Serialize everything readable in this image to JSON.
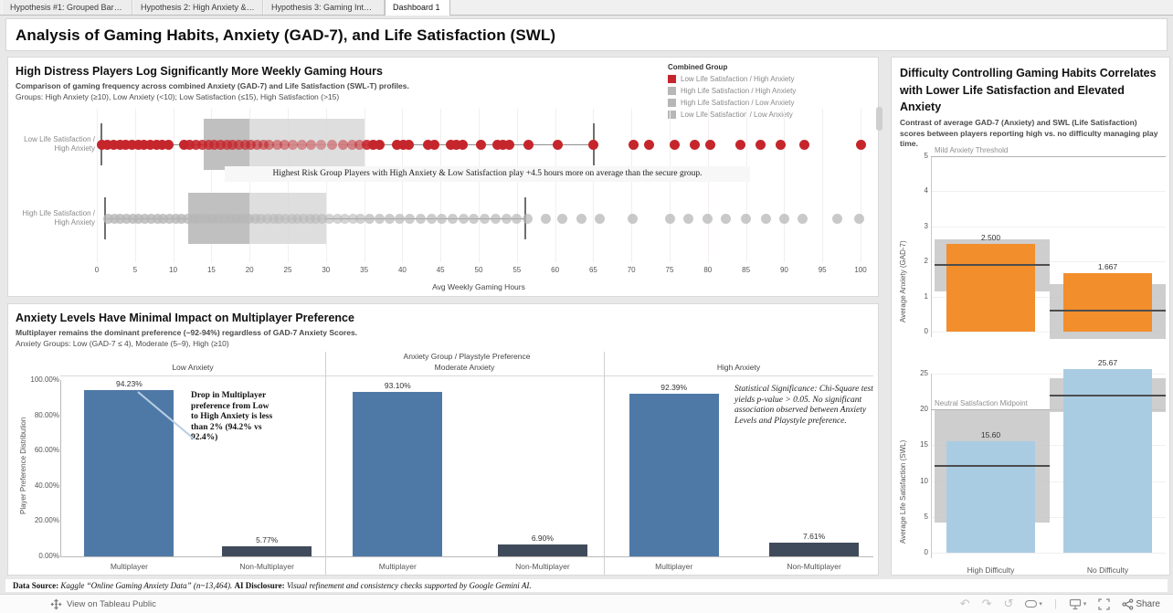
{
  "window": {
    "tabs": [
      {
        "label": "Hypothesis #1: Grouped Bar C...",
        "active": false
      },
      {
        "label": "Hypothesis 2: High Anxiety & L...",
        "active": false
      },
      {
        "label": "Hypothesis 3: Gaming Interfer...",
        "active": false
      },
      {
        "label": "Dashboard 1",
        "active": true
      }
    ]
  },
  "title": "Analysis of Gaming Habits, Anxiety (GAD-7), and Life Satisfaction (SWL)",
  "colors": {
    "red": "#c5262c",
    "gray_dot": "#b7b7b7",
    "box_light": "#d8d8d8",
    "box_dark": "#bcbcbc",
    "blue": "#4e79a7",
    "slate": "#3f4b5a",
    "orange": "#f28e2b",
    "light_blue": "#a9cce3",
    "ci_gray": "#c6c6c6",
    "leader_blue": "#b9cfe4"
  },
  "hours_chart": {
    "title": "High Distress Players Log Significantly More Weekly Gaming Hours",
    "subtitle1": "Comparison of gaming frequency across combined Anxiety (GAD-7) and Life Satisfaction (SWL-T) profiles.",
    "subtitle2": "Groups: High Anxiety (≥10), Low Anxiety (<10); Low Satisfaction (≤15), High Satisfaction (>15)",
    "legend": {
      "title": "Combined Group",
      "items": [
        {
          "label": "Low Life Satisfaction / High Anxiety",
          "color": "#c5262c"
        },
        {
          "label": "High Life Satisfaction / High Anxiety",
          "color": "#b7b7b7"
        },
        {
          "label": "High Life Satisfaction / Low Anxiety",
          "color": "#b7b7b7"
        },
        {
          "label": "Low Life Satisfaction / Low Anxiety",
          "color": "#b7b7b7"
        }
      ]
    },
    "annotation": "Highest Risk Group Players with High Anxiety & Low Satisfaction play +4.5 hours more on average than the secure group.",
    "xlabel": "Avg Weekly Gaming Hours"
  },
  "preference_chart": {
    "title": "Anxiety Levels Have Minimal Impact on Multiplayer Preference",
    "subtitle1": "Multiplayer remains the dominant preference (~92-94%) regardless of GAD-7 Anxiety Scores.",
    "subtitle2": "Anxiety Groups: Low (GAD-7 ≤ 4), Moderate (5–9), High (≥10)",
    "column_header": "Anxiety Group / Playstyle Preference",
    "ylabel": "Player Preference Distribution",
    "annotation_low": "Drop in Multiplayer preference from Low to High Anxiety is less than 2% (94.2% vs 92.4%)",
    "annotation_high": "Statistical Significance: Chi-Square test yields p-value > 0.05. No significant association observed between Anxiety Levels and Playstyle preference."
  },
  "difficulty_chart": {
    "title": "Difficulty Controlling Gaming Habits Correlates with Lower Life Satisfaction and Elevated Anxiety",
    "subtitle": "Contrast of average GAD-7 (Anxiety) and SWL (Life Satisfaction) scores between players reporting high vs. no difficulty managing play time."
  },
  "footer": {
    "source_label": "Data Source:",
    "source_text": " Kaggle “Online Gaming Anxiety Data” (n~13,464). ",
    "ai_label": "AI Disclosure:",
    "ai_text": " Visual refinement and consistency checks supported by Google Gemini AI."
  },
  "statusbar": {
    "view_link": "View on Tableau Public",
    "share": "Share",
    "icons": [
      "undo-icon",
      "redo-icon",
      "reset-icon",
      "device-layout-icon",
      "download-device-icon",
      "fullscreen-icon",
      "share-icon"
    ]
  },
  "chart_data": [
    {
      "type": "strip-box",
      "title": "High Distress Players Log Significantly More Weekly Gaming Hours",
      "xlabel": "Avg Weekly Gaming Hours",
      "xlim": [
        0,
        100
      ],
      "xstep": 5,
      "rows": [
        {
          "label": "Low Life Satisfaction / High Anxiety",
          "color": "#c5262c",
          "box": {
            "whisker_low": 0.5,
            "q1": 14,
            "median": 20,
            "q3": 35,
            "whisker_high": 65
          },
          "points": [
            [
              0.6,
              1
            ],
            [
              1.4,
              1
            ],
            [
              2.2,
              1
            ],
            [
              3,
              1
            ],
            [
              3.8,
              1
            ],
            [
              4.6,
              1
            ],
            [
              5.4,
              1
            ],
            [
              6.2,
              1
            ],
            [
              7,
              1
            ],
            [
              7.8,
              1
            ],
            [
              8.6,
              1
            ],
            [
              9.4,
              1
            ],
            [
              11.4,
              1
            ],
            [
              12.2,
              0.95
            ],
            [
              13,
              0.9
            ],
            [
              13.8,
              0.85
            ],
            [
              14.6,
              0.8
            ],
            [
              15.4,
              0.8
            ],
            [
              16.2,
              0.8
            ],
            [
              17,
              0.75
            ],
            [
              17.8,
              0.75
            ],
            [
              18.6,
              0.7
            ],
            [
              19.4,
              0.7
            ],
            [
              20.2,
              0.7
            ],
            [
              21,
              0.65
            ],
            [
              21.8,
              0.6
            ],
            [
              22.6,
              0.55
            ],
            [
              23.6,
              0.5
            ],
            [
              24.6,
              0.5
            ],
            [
              25.6,
              0.45
            ],
            [
              26.8,
              0.45
            ],
            [
              28,
              0.45
            ],
            [
              29.4,
              0.4
            ],
            [
              30.8,
              0.45
            ],
            [
              32.2,
              0.5
            ],
            [
              33.4,
              0.5
            ],
            [
              34.4,
              0.55
            ],
            [
              35.4,
              0.9
            ],
            [
              36.2,
              1
            ],
            [
              37,
              1
            ],
            [
              39.3,
              1
            ],
            [
              40.1,
              1
            ],
            [
              40.9,
              1
            ],
            [
              43.4,
              1
            ],
            [
              44.2,
              1
            ],
            [
              46.3,
              1
            ],
            [
              47.1,
              1
            ],
            [
              47.9,
              1
            ],
            [
              50.3,
              1
            ],
            [
              52.4,
              1
            ],
            [
              53.2,
              1
            ],
            [
              54,
              1
            ],
            [
              56.5,
              1
            ],
            [
              60.3,
              1
            ],
            [
              65,
              1
            ],
            [
              70.3,
              1
            ],
            [
              72.3,
              1
            ],
            [
              75.6,
              1
            ],
            [
              78.3,
              1
            ],
            [
              80.3,
              1
            ],
            [
              84.3,
              1
            ],
            [
              86.9,
              1
            ],
            [
              89.5,
              1
            ],
            [
              92.6,
              1
            ],
            [
              100,
              1
            ]
          ]
        },
        {
          "label": "High Life Satisfaction / High Anxiety",
          "color": "#b7b7b7",
          "box": {
            "whisker_low": 1,
            "q1": 12,
            "median": 20,
            "q3": 30,
            "whisker_high": 56
          },
          "points": [
            [
              1.5,
              0.8
            ],
            [
              2.3,
              0.8
            ],
            [
              3.1,
              0.8
            ],
            [
              3.9,
              0.8
            ],
            [
              4.7,
              0.8
            ],
            [
              5.5,
              0.8
            ],
            [
              6.3,
              0.8
            ],
            [
              7.1,
              0.8
            ],
            [
              7.9,
              0.8
            ],
            [
              8.7,
              0.8
            ],
            [
              9.5,
              0.8
            ],
            [
              10.3,
              0.8
            ],
            [
              11.1,
              0.8
            ],
            [
              11.9,
              0.75
            ],
            [
              12.7,
              0.7
            ],
            [
              13.5,
              0.7
            ],
            [
              14.3,
              0.7
            ],
            [
              15.1,
              0.7
            ],
            [
              15.9,
              0.7
            ],
            [
              16.7,
              0.7
            ],
            [
              17.5,
              0.7
            ],
            [
              18.3,
              0.7
            ],
            [
              19.1,
              0.7
            ],
            [
              19.9,
              0.7
            ],
            [
              20.7,
              0.65
            ],
            [
              21.5,
              0.6
            ],
            [
              22.3,
              0.6
            ],
            [
              23.1,
              0.6
            ],
            [
              23.9,
              0.6
            ],
            [
              24.7,
              0.55
            ],
            [
              25.5,
              0.55
            ],
            [
              26.3,
              0.55
            ],
            [
              27.1,
              0.55
            ],
            [
              27.9,
              0.55
            ],
            [
              28.7,
              0.55
            ],
            [
              29.5,
              0.55
            ],
            [
              30.5,
              0.6
            ],
            [
              31.5,
              0.6
            ],
            [
              32.5,
              0.6
            ],
            [
              33.5,
              0.6
            ],
            [
              34.5,
              0.65
            ],
            [
              35.7,
              0.7
            ],
            [
              37,
              0.7
            ],
            [
              38.3,
              0.7
            ],
            [
              39.6,
              0.7
            ],
            [
              41,
              0.7
            ],
            [
              42.4,
              0.7
            ],
            [
              43.8,
              0.7
            ],
            [
              45.2,
              0.7
            ],
            [
              46.6,
              0.7
            ],
            [
              48,
              0.7
            ],
            [
              49.4,
              0.7
            ],
            [
              50.8,
              0.7
            ],
            [
              52.2,
              0.7
            ],
            [
              53.6,
              0.7
            ],
            [
              55,
              0.7
            ],
            [
              56.4,
              0.7
            ],
            [
              58.8,
              0.75
            ],
            [
              61,
              0.75
            ],
            [
              63.4,
              0.75
            ],
            [
              65.8,
              0.75
            ],
            [
              70.2,
              0.75
            ],
            [
              75,
              0.75
            ],
            [
              77.4,
              0.75
            ],
            [
              80,
              0.75
            ],
            [
              82.4,
              0.75
            ],
            [
              85,
              0.75
            ],
            [
              87.6,
              0.75
            ],
            [
              90,
              0.75
            ],
            [
              92.4,
              0.75
            ],
            [
              97,
              0.75
            ],
            [
              99.8,
              0.75
            ]
          ]
        }
      ],
      "annotation": "Highest Risk Group Players with High Anxiety & Low Satisfaction play +4.5 hours more on average than the secure group."
    },
    {
      "type": "bar",
      "title": "Anxiety Group / Playstyle Preference",
      "ylabel": "Player Preference Distribution",
      "categories": [
        "Multiplayer",
        "Non-Multiplayer"
      ],
      "yticks_pct": [
        "0.00%",
        "20.00%",
        "40.00%",
        "60.00%",
        "80.00%",
        "100.00%"
      ],
      "ylim": [
        0,
        100
      ],
      "panels": [
        {
          "label": "Low Anxiety",
          "values": [
            94.23,
            5.77
          ],
          "labels": [
            "94.23%",
            "5.77%"
          ]
        },
        {
          "label": "Moderate Anxiety",
          "values": [
            93.1,
            6.9
          ],
          "labels": [
            "93.10%",
            "6.90%"
          ]
        },
        {
          "label": "High Anxiety",
          "values": [
            92.39,
            7.61
          ],
          "labels": [
            "92.39%",
            "7.61%"
          ]
        }
      ],
      "bar_colors": [
        "#4e79a7",
        "#3f4b5a"
      ]
    },
    {
      "type": "bar",
      "ylabel": "Average Anxiety (GAD-7)",
      "categories": [
        "High Difficulty",
        "No Difficulty"
      ],
      "values": [
        2.5,
        1.667
      ],
      "labels": [
        "2.500",
        "1.667"
      ],
      "ylim": [
        0,
        5
      ],
      "yticks": [
        0,
        1,
        2,
        3,
        4,
        5
      ],
      "refline": {
        "value": 5,
        "label": "Mild Anxiety Threshold"
      },
      "ci": [
        [
          1.15,
          2.62
        ],
        [
          -0.2,
          1.35
        ]
      ],
      "means": [
        1.92,
        0.62
      ],
      "color": "#f28e2b",
      "show_x_labels": false
    },
    {
      "type": "bar",
      "ylabel": "Average Life Satisfaction (SWL)",
      "categories": [
        "High Difficulty",
        "No Difficulty"
      ],
      "values": [
        15.6,
        25.67
      ],
      "labels": [
        "15.60",
        "25.67"
      ],
      "ylim": [
        0,
        25
      ],
      "yticks": [
        0,
        5,
        10,
        15,
        20,
        25
      ],
      "refline": {
        "value": 20,
        "label": "Neutral Satisfaction Midpoint"
      },
      "ci": [
        [
          4.2,
          19.9
        ],
        [
          19.6,
          24.3
        ]
      ],
      "means": [
        12.3,
        22.1
      ],
      "color": "#a9cce3",
      "show_x_labels": true
    }
  ]
}
